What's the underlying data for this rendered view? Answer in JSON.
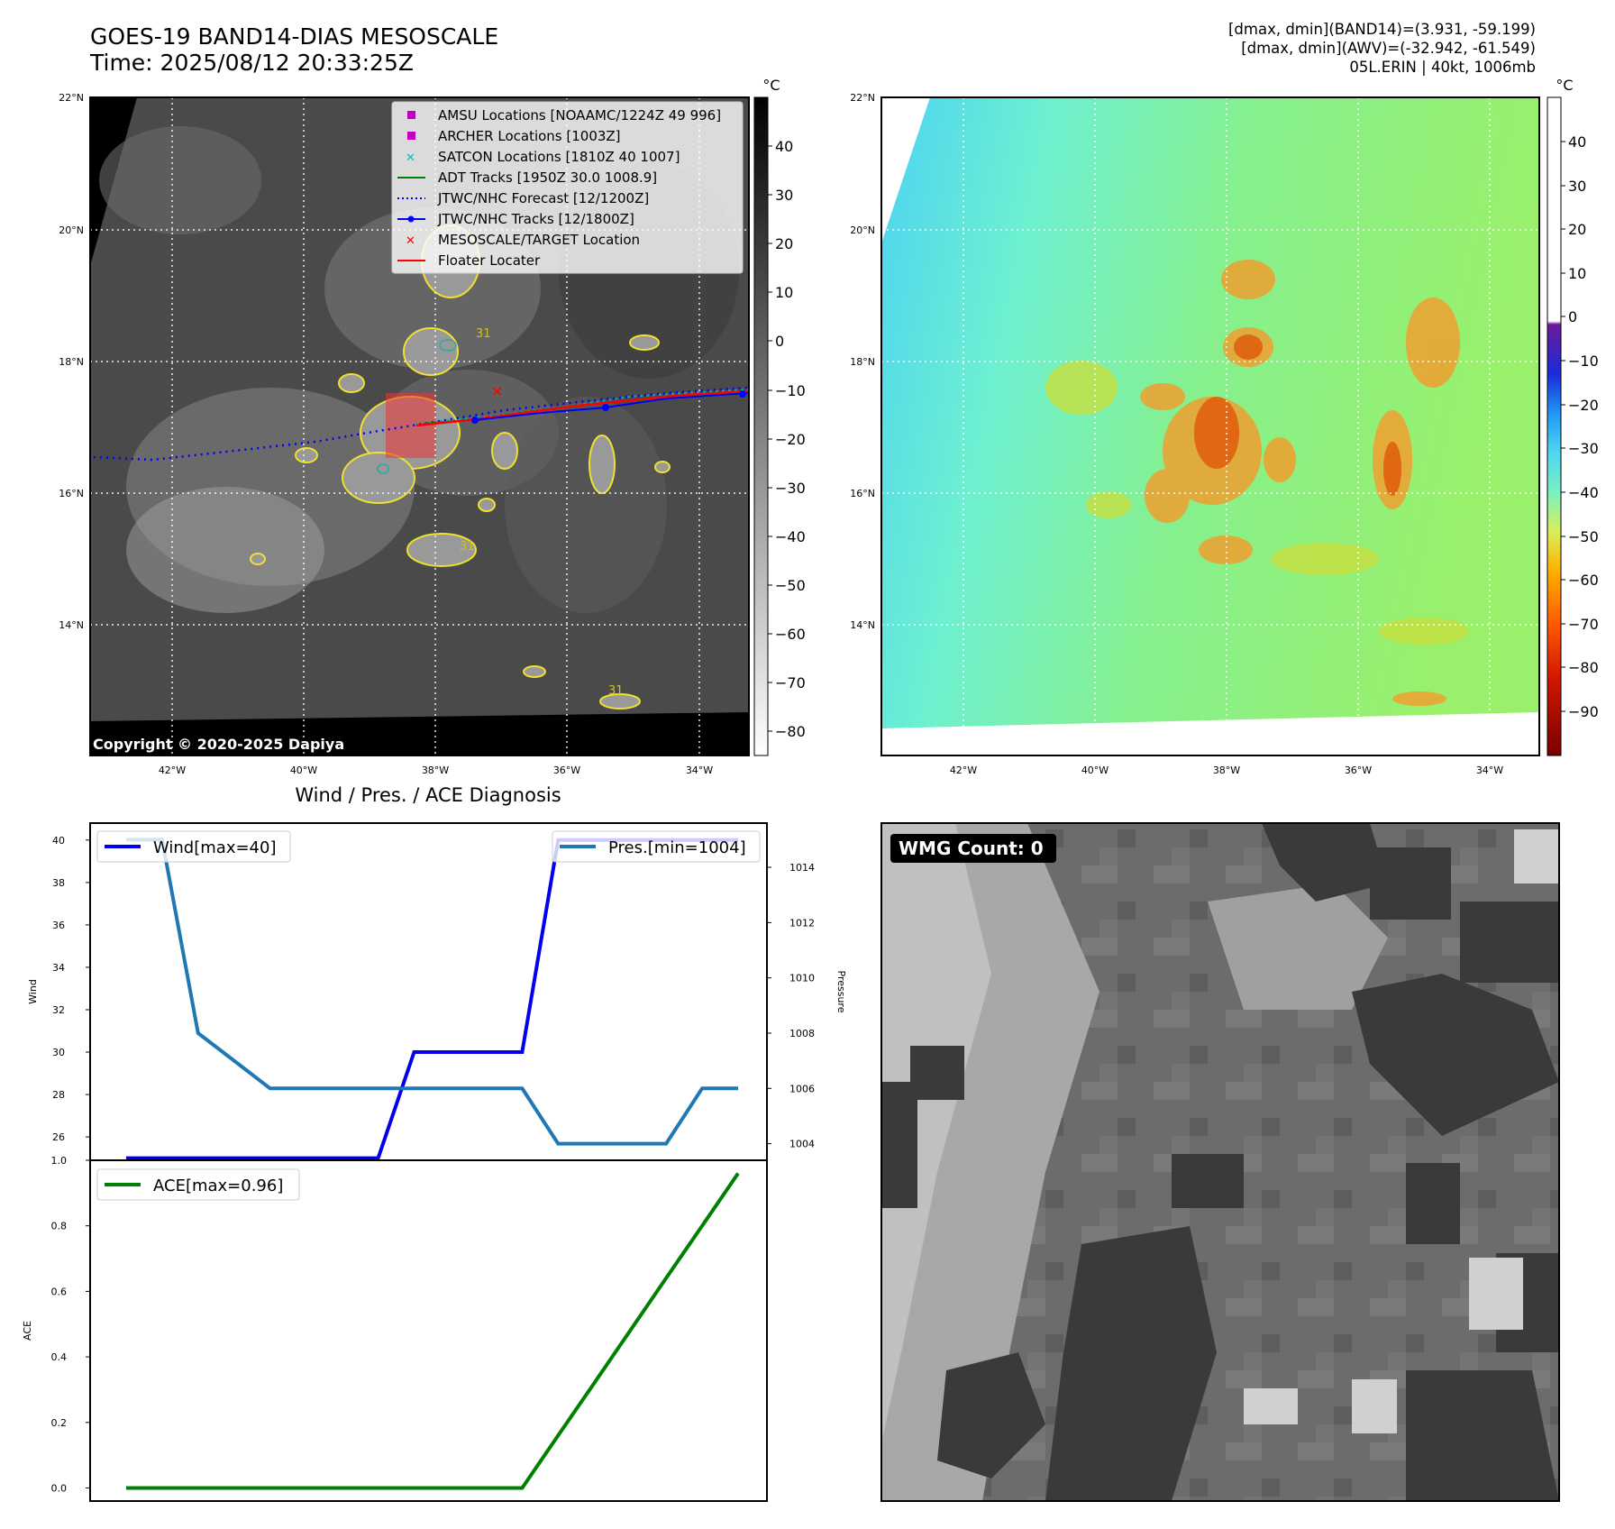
{
  "header": {
    "title": "GOES-19 BAND14-DIAS MESOSCALE",
    "time": "Time: 2025/08/12 20:33:25Z",
    "stats": [
      "[dmax, dmin](BAND14)=(3.931, -59.199)",
      "[dmax, dmin](AWV)=(-32.942, -61.549)",
      "05L.ERIN | 40kt, 1006mb"
    ]
  },
  "maps": {
    "lat_labels": [
      "22°N",
      "20°N",
      "18°N",
      "16°N",
      "14°N"
    ],
    "lon_labels": [
      "42°W",
      "40°W",
      "38°W",
      "36°W",
      "34°W"
    ],
    "copyright": "Copyright © 2020-2025 Dapiya",
    "contour_label": "31"
  },
  "ir_colorbar": {
    "unit": "°C",
    "ticks": [
      "40",
      "30",
      "20",
      "10",
      "0",
      "−10",
      "−20",
      "−30",
      "−40",
      "−50",
      "−60",
      "−70",
      "−80"
    ]
  },
  "awv_colorbar": {
    "unit": "°C",
    "ticks": [
      "40",
      "30",
      "20",
      "10",
      "0",
      "−10",
      "−20",
      "−30",
      "−40",
      "−50",
      "−60",
      "−70",
      "−80",
      "−90"
    ]
  },
  "legend": [
    {
      "label": "AMSU Locations [NOAAMC/1224Z 49 996]",
      "color": "#c000c0",
      "kind": "square"
    },
    {
      "label": "ARCHER Locations [1003Z]",
      "color": "#c000c0",
      "kind": "square"
    },
    {
      "label": "SATCON Locations [1810Z 40 1007]",
      "color": "#00c0c0",
      "kind": "x"
    },
    {
      "label": "ADT Tracks [1950Z 30.0 1008.9]",
      "color": "#008000",
      "kind": "line"
    },
    {
      "label": "JTWC/NHC Forecast [12/1200Z]",
      "color": "#0000ff",
      "kind": "dotted"
    },
    {
      "label": "JTWC/NHC Tracks [12/1800Z]",
      "color": "#0000ff",
      "kind": "line-dot"
    },
    {
      "label": "MESOSCALE/TARGET Location",
      "color": "#ff0000",
      "kind": "x"
    },
    {
      "label": "Floater Locater",
      "color": "#ff0000",
      "kind": "line"
    }
  ],
  "wmg_label": "WMG Count: 0",
  "chart_data": [
    {
      "type": "line",
      "title": "Wind / Pres. / ACE Diagnosis",
      "ylabel": "Wind",
      "y2label": "Pressure",
      "ylim": [
        24.9,
        40.8
      ],
      "y2lim": [
        1003.4,
        1015.6
      ],
      "yticks": [
        "26",
        "28",
        "30",
        "32",
        "34",
        "36",
        "38",
        "40"
      ],
      "y2ticks": [
        "1004",
        "1006",
        "1008",
        "1010",
        "1012",
        "1014"
      ],
      "x": [
        0,
        1,
        2,
        3,
        4,
        5,
        6,
        7,
        8,
        9,
        10,
        11,
        12,
        13,
        14,
        15,
        16,
        17
      ],
      "xlim": [
        -1,
        17.8
      ],
      "series": [
        {
          "name": "Wind[max=40]",
          "color": "#0000ee",
          "axis": "left",
          "values": [
            25,
            25,
            25,
            25,
            25,
            25,
            25,
            25,
            30,
            30,
            30,
            30,
            40,
            40,
            40,
            40,
            40,
            40
          ]
        },
        {
          "name": "Pres.[min=1004]",
          "color": "#1f77b4",
          "axis": "right",
          "values": [
            1015,
            1015,
            1008,
            1007,
            1006,
            1006,
            1006,
            1006,
            1006,
            1006,
            1006,
            1006,
            1004,
            1004,
            1004,
            1004,
            1006,
            1006
          ]
        }
      ]
    },
    {
      "type": "line",
      "ylabel": "ACE",
      "ylim": [
        -0.04,
        1.0
      ],
      "yticks": [
        "0.0",
        "0.2",
        "0.4",
        "0.6",
        "0.8",
        "1.0"
      ],
      "x": [
        0,
        1,
        2,
        3,
        4,
        5,
        6,
        7,
        8,
        9,
        10,
        11,
        12,
        13,
        14,
        15,
        16,
        17
      ],
      "xlim": [
        -1,
        17.8
      ],
      "series": [
        {
          "name": "ACE[max=0.96]",
          "color": "#008000",
          "axis": "left",
          "values": [
            0,
            0,
            0,
            0,
            0,
            0,
            0,
            0,
            0,
            0,
            0,
            0,
            0.16,
            0.32,
            0.48,
            0.64,
            0.8,
            0.96
          ]
        }
      ]
    }
  ]
}
